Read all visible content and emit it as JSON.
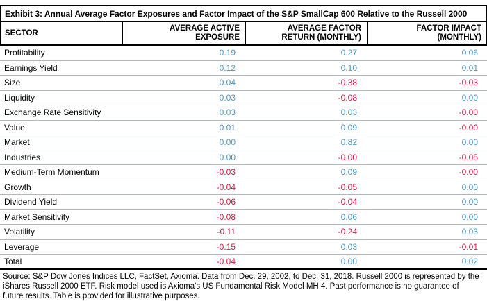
{
  "title": "Exhibit 3: Annual Average Factor Exposures and Factor Impact of the S&P SmallCap 600 Relative to the Russell 2000",
  "colors": {
    "positive_value": "#4f97bc",
    "negative_value": "#c81e45",
    "row_divider": "#b2b8bc",
    "border": "#000000"
  },
  "table": {
    "columns": [
      {
        "lines": [
          "SECTOR"
        ]
      },
      {
        "lines": [
          "AVERAGE ACTIVE",
          "EXPOSURE"
        ]
      },
      {
        "lines": [
          "AVERAGE FACTOR",
          "RETURN (MONTHLY)"
        ]
      },
      {
        "lines": [
          "FACTOR IMPACT",
          "(MONTHLY)"
        ]
      }
    ],
    "rows": [
      {
        "sector": "Profitability",
        "values": [
          "0.19",
          "0.27",
          "0.06"
        ]
      },
      {
        "sector": "Earnings Yield",
        "values": [
          "0.12",
          "0.10",
          "0.01"
        ]
      },
      {
        "sector": "Size",
        "values": [
          "0.04",
          "-0.38",
          "-0.03"
        ]
      },
      {
        "sector": "Liquidity",
        "values": [
          "0.03",
          "-0.08",
          "0.00"
        ]
      },
      {
        "sector": "Exchange Rate Sensitivity",
        "values": [
          "0.03",
          "0.03",
          "-0.00"
        ]
      },
      {
        "sector": "Value",
        "values": [
          "0.01",
          "0.09",
          "-0.00"
        ]
      },
      {
        "sector": "Market",
        "values": [
          "0.00",
          "0.82",
          "0.00"
        ]
      },
      {
        "sector": "Industries",
        "values": [
          "0.00",
          "-0.00",
          "-0.05"
        ]
      },
      {
        "sector": "Medium-Term Momentum",
        "values": [
          "-0.03",
          "0.09",
          "-0.00"
        ]
      },
      {
        "sector": "Growth",
        "values": [
          "-0.04",
          "-0.05",
          "0.00"
        ]
      },
      {
        "sector": "Dividend Yield",
        "values": [
          "-0.06",
          "-0.04",
          "0.00"
        ]
      },
      {
        "sector": "Market Sensitivity",
        "values": [
          "-0.08",
          "0.06",
          "0.00"
        ]
      },
      {
        "sector": "Volatility",
        "values": [
          "-0.11",
          "-0.24",
          "0.03"
        ]
      },
      {
        "sector": "Leverage",
        "values": [
          "-0.15",
          "0.03",
          "-0.01"
        ]
      },
      {
        "sector": "Total",
        "values": [
          "-0.04",
          "0.00",
          "0.02"
        ]
      }
    ]
  },
  "footnote": "Source: S&P Dow Jones Indices LLC, FactSet, Axioma. Data from Dec. 29, 2002, to Dec. 31, 2018. Russell 2000 is represented by the iShares Russell 2000 ETF. Risk model used is Axioma's US Fundamental Risk Model MH 4. Past performance is no guarantee of future results. Table is provided for illustrative purposes."
}
